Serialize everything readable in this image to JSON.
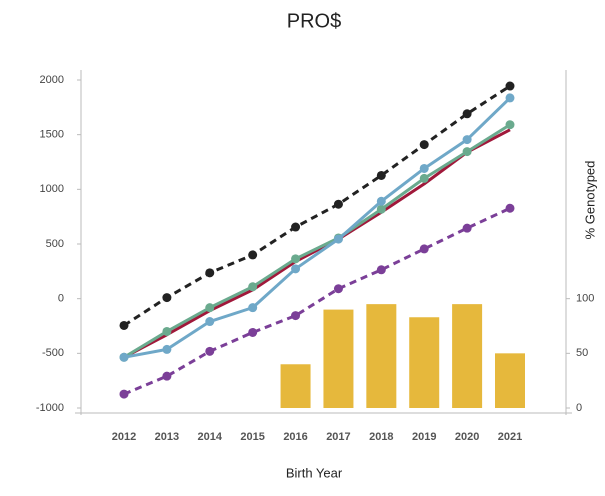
{
  "chart_data": {
    "type": "line",
    "title": "PRO$",
    "x_label": "Birth Year",
    "y2_label": "% Genotyped",
    "categories": [
      "2012",
      "2013",
      "2014",
      "2015",
      "2016",
      "2017",
      "2018",
      "2019",
      "2020",
      "2021"
    ],
    "series": [
      {
        "color": "#222222",
        "dashed": true,
        "markers": true,
        "values": [
          -245,
          10,
          236,
          400,
          655,
          864,
          1127,
          1409,
          1691,
          1945
        ]
      },
      {
        "color": "#7b3f98",
        "dashed": true,
        "markers": true,
        "values": [
          -873,
          -709,
          -482,
          -309,
          -155,
          91,
          264,
          455,
          645,
          827
        ]
      },
      {
        "color": "#a0183a",
        "dashed": false,
        "markers": false,
        "values": [
          -536,
          -330,
          -110,
          80,
          340,
          545,
          790,
          1050,
          1340,
          1545
        ]
      },
      {
        "color": "#6aaa8e",
        "dashed": false,
        "markers": true,
        "values": [
          -536,
          -300,
          -82,
          109,
          364,
          555,
          818,
          1100,
          1345,
          1591
        ]
      },
      {
        "color": "#6fa8c8",
        "dashed": false,
        "markers": true,
        "values": [
          -536,
          -464,
          -209,
          -82,
          273,
          545,
          891,
          1191,
          1455,
          1836
        ]
      },
      {
        "type": "bar",
        "axis": "y2",
        "color": "#e6b83c",
        "values": [
          null,
          null,
          null,
          null,
          40,
          90,
          95,
          83,
          95,
          50
        ]
      }
    ],
    "ylim": [
      -1000,
      2000
    ],
    "yticks": [
      -1000,
      -500,
      0,
      500,
      1000,
      1500,
      2000
    ],
    "y2lim": [
      0,
      300
    ],
    "y2ticks": [
      0,
      50,
      100
    ],
    "grid": false
  }
}
